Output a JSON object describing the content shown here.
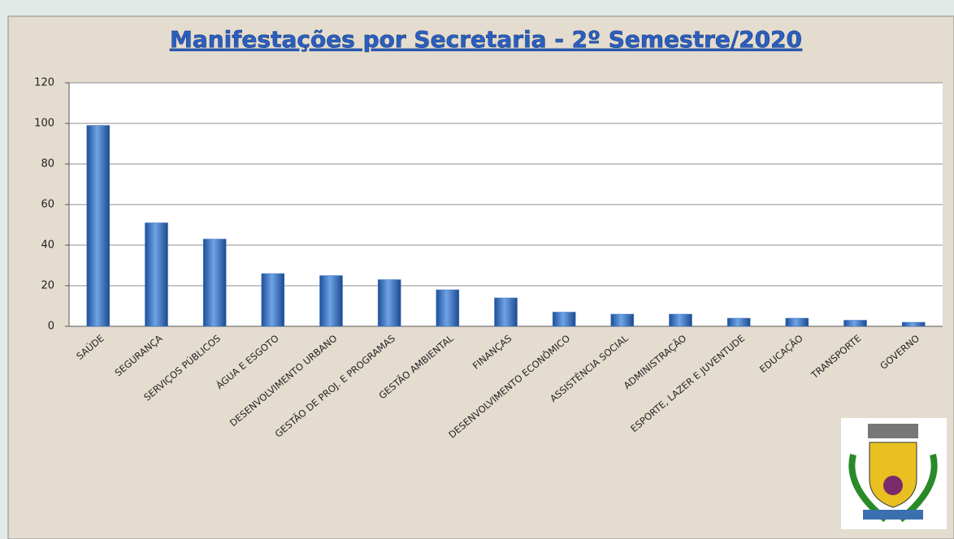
{
  "chart_data": {
    "type": "bar",
    "title": "Manifestações por Secretaria - 2º Semestre/2020",
    "categories": [
      "SAÚDE",
      "SEGURANÇA",
      "SERVIÇOS PÚBLICOS",
      "ÁGUA E ESGOTO",
      "DESENVOLVIMENTO  URBANO",
      "GESTÃO DE PROJ. E PROGRAMAS",
      "GESTÃO AMBIENTAL",
      "FINANÇAS",
      "DESENVOLVIMENTO  ECONÔMICO",
      "ASSISTÊNCIA SOCIAL",
      "ADMINISTRAÇÃO",
      "ESPORTE, LAZER E JUVENTUDE",
      "EDUCAÇÃO",
      "TRANSPORTE",
      "GOVERNO"
    ],
    "values": [
      99,
      51,
      43,
      26,
      25,
      23,
      18,
      14,
      7,
      6,
      6,
      4,
      4,
      3,
      2
    ],
    "color": "#3a73c4",
    "ylim": [
      0,
      120
    ],
    "yticks": [
      0,
      20,
      40,
      60,
      80,
      100,
      120
    ],
    "grid": true
  }
}
